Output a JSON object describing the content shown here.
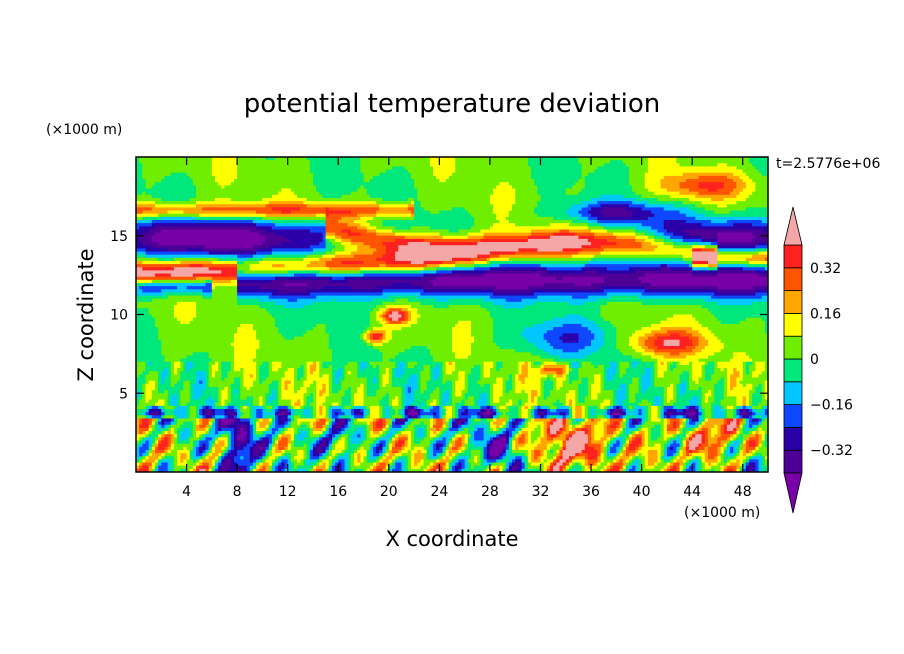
{
  "chart_data": {
    "type": "heatmap",
    "title": "potential temperature deviation",
    "xlabel": "X coordinate",
    "ylabel": "Z coordinate",
    "x_unit": "(×1000 m)",
    "y_unit": "(×1000 m)",
    "time_label": "t=2.5776e+06",
    "xlim": [
      0,
      50
    ],
    "ylim": [
      0,
      20
    ],
    "x_ticks": [
      4,
      8,
      12,
      16,
      20,
      24,
      28,
      32,
      36,
      40,
      44,
      48
    ],
    "y_ticks": [
      5,
      10,
      15
    ],
    "colorbar": {
      "levels": [
        -0.4,
        -0.32,
        -0.24,
        -0.16,
        -0.08,
        0,
        0.08,
        0.16,
        0.24,
        0.32,
        0.4
      ],
      "labels": [
        "0.32",
        "0.16",
        "0",
        "−0.16",
        "−0.32"
      ],
      "label_values": [
        0.32,
        0.16,
        0,
        -0.16,
        -0.32
      ],
      "colors": [
        "#4e0096",
        "#2a00a8",
        "#0f47ff",
        "#00c8ff",
        "#00e87c",
        "#70ee00",
        "#ffff00",
        "#ffa600",
        "#ff5500",
        "#ff2020"
      ],
      "over_color": "#f5a6a6",
      "under_color": "#7800a8"
    }
  }
}
